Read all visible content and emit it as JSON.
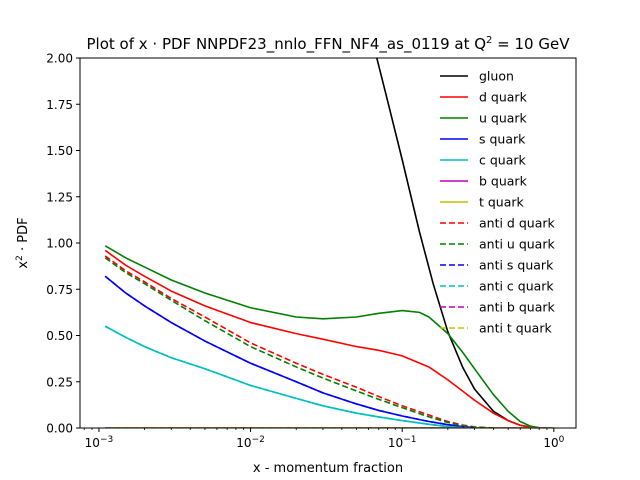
{
  "chart_data": {
    "type": "line",
    "title": {
      "prefix": "Plot of x · PDF NNPDF23_nnlo_FFN_NF4_as_0119 at Q",
      "sup": "2",
      "suffix": " = 10 GeV"
    },
    "xlabel": "x - momentum fraction",
    "ylabel": {
      "base": "x",
      "sup": "2",
      "rest": " · PDF"
    },
    "x_scale": "log",
    "xlim": [
      0.00075,
      1.4
    ],
    "ylim": [
      0,
      2
    ],
    "x_ticks": [
      {
        "value": 0.001,
        "base": "10",
        "exp": "−3"
      },
      {
        "value": 0.01,
        "base": "10",
        "exp": "−2"
      },
      {
        "value": 0.1,
        "base": "10",
        "exp": "−1"
      },
      {
        "value": 1,
        "base": "10",
        "exp": "0"
      }
    ],
    "y_ticks": [
      {
        "value": 0,
        "label": "0.00"
      },
      {
        "value": 0.25,
        "label": "0.25"
      },
      {
        "value": 0.5,
        "label": "0.50"
      },
      {
        "value": 0.75,
        "label": "0.75"
      },
      {
        "value": 1.0,
        "label": "1.00"
      },
      {
        "value": 1.25,
        "label": "1.25"
      },
      {
        "value": 1.5,
        "label": "1.50"
      },
      {
        "value": 1.75,
        "label": "1.75"
      },
      {
        "value": 2.0,
        "label": "2.00"
      }
    ],
    "grid": false,
    "legend_position": "top-right",
    "series": [
      {
        "name": "gluon",
        "color": "#000000",
        "dash": "solid",
        "x": [
          0.068,
          0.08,
          0.1,
          0.13,
          0.16,
          0.2,
          0.25,
          0.3,
          0.4,
          0.5,
          0.6,
          0.7,
          0.8,
          0.9
        ],
        "y": [
          2.0,
          1.77,
          1.45,
          1.06,
          0.78,
          0.52,
          0.33,
          0.21,
          0.09,
          0.04,
          0.015,
          0.005,
          0.001,
          0.0
        ]
      },
      {
        "name": "d quark",
        "color": "#ff0000",
        "dash": "solid",
        "x": [
          0.0011,
          0.0015,
          0.002,
          0.003,
          0.005,
          0.01,
          0.02,
          0.03,
          0.05,
          0.07,
          0.1,
          0.15,
          0.2,
          0.25,
          0.3,
          0.4,
          0.5,
          0.6,
          0.7,
          0.8
        ],
        "y": [
          0.96,
          0.88,
          0.82,
          0.74,
          0.66,
          0.57,
          0.51,
          0.48,
          0.44,
          0.42,
          0.39,
          0.33,
          0.26,
          0.2,
          0.15,
          0.08,
          0.04,
          0.015,
          0.004,
          0.0
        ]
      },
      {
        "name": "u quark",
        "color": "#008000",
        "dash": "solid",
        "x": [
          0.0011,
          0.0015,
          0.002,
          0.003,
          0.005,
          0.01,
          0.02,
          0.03,
          0.05,
          0.07,
          0.1,
          0.13,
          0.15,
          0.2,
          0.25,
          0.3,
          0.4,
          0.5,
          0.6,
          0.7,
          0.8,
          0.85
        ],
        "y": [
          0.985,
          0.92,
          0.87,
          0.8,
          0.73,
          0.65,
          0.6,
          0.59,
          0.6,
          0.62,
          0.635,
          0.625,
          0.6,
          0.51,
          0.41,
          0.32,
          0.18,
          0.09,
          0.035,
          0.01,
          0.002,
          0.0
        ]
      },
      {
        "name": "s quark",
        "color": "#0000ff",
        "dash": "solid",
        "x": [
          0.0011,
          0.0015,
          0.002,
          0.003,
          0.005,
          0.01,
          0.02,
          0.03,
          0.05,
          0.07,
          0.1,
          0.15,
          0.2,
          0.25,
          0.3
        ],
        "y": [
          0.82,
          0.73,
          0.66,
          0.57,
          0.47,
          0.35,
          0.25,
          0.19,
          0.13,
          0.095,
          0.065,
          0.035,
          0.018,
          0.007,
          0.002
        ]
      },
      {
        "name": "c quark",
        "color": "#00bfbf",
        "dash": "solid",
        "x": [
          0.0011,
          0.0015,
          0.002,
          0.003,
          0.005,
          0.01,
          0.02,
          0.03,
          0.05,
          0.07,
          0.1,
          0.15,
          0.2,
          0.25
        ],
        "y": [
          0.55,
          0.49,
          0.44,
          0.38,
          0.32,
          0.23,
          0.16,
          0.12,
          0.08,
          0.06,
          0.04,
          0.02,
          0.008,
          0.002
        ]
      },
      {
        "name": "b quark",
        "color": "#bf00bf",
        "dash": "solid",
        "x": [
          0.0011,
          1.0
        ],
        "y": [
          0.0,
          0.0
        ]
      },
      {
        "name": "t quark",
        "color": "#bfbf00",
        "dash": "solid",
        "x": [
          0.0011,
          1.0
        ],
        "y": [
          0.0,
          0.0
        ]
      },
      {
        "name": "anti d quark",
        "color": "#ff0000",
        "dash": "dashed",
        "x": [
          0.0011,
          0.0015,
          0.002,
          0.003,
          0.005,
          0.01,
          0.02,
          0.03,
          0.05,
          0.07,
          0.1,
          0.15,
          0.2,
          0.25,
          0.3,
          0.4
        ],
        "y": [
          0.93,
          0.85,
          0.79,
          0.7,
          0.6,
          0.46,
          0.35,
          0.29,
          0.22,
          0.17,
          0.12,
          0.07,
          0.035,
          0.016,
          0.006,
          0.0
        ]
      },
      {
        "name": "anti u quark",
        "color": "#008000",
        "dash": "dashed",
        "x": [
          0.0011,
          0.0015,
          0.002,
          0.003,
          0.005,
          0.01,
          0.02,
          0.03,
          0.05,
          0.07,
          0.1,
          0.15,
          0.2,
          0.25,
          0.3,
          0.4
        ],
        "y": [
          0.92,
          0.84,
          0.78,
          0.69,
          0.58,
          0.44,
          0.33,
          0.27,
          0.2,
          0.155,
          0.11,
          0.06,
          0.03,
          0.013,
          0.005,
          0.0
        ]
      },
      {
        "name": "anti s quark",
        "color": "#0000ff",
        "dash": "dashed",
        "x": [
          0.0011,
          0.0015,
          0.002,
          0.003,
          0.005,
          0.01,
          0.02,
          0.03,
          0.05,
          0.07,
          0.1,
          0.15,
          0.2,
          0.25,
          0.3
        ],
        "y": [
          0.82,
          0.73,
          0.66,
          0.57,
          0.47,
          0.35,
          0.25,
          0.19,
          0.13,
          0.095,
          0.065,
          0.035,
          0.018,
          0.007,
          0.002
        ]
      },
      {
        "name": "anti c quark",
        "color": "#00bfbf",
        "dash": "dashed",
        "x": [
          0.0011,
          0.0015,
          0.002,
          0.003,
          0.005,
          0.01,
          0.02,
          0.03,
          0.05,
          0.07,
          0.1,
          0.15,
          0.2,
          0.25
        ],
        "y": [
          0.55,
          0.49,
          0.44,
          0.38,
          0.32,
          0.23,
          0.16,
          0.12,
          0.08,
          0.06,
          0.04,
          0.02,
          0.008,
          0.002
        ]
      },
      {
        "name": "anti b quark",
        "color": "#bf00bf",
        "dash": "dashed",
        "x": [
          0.0011,
          1.0
        ],
        "y": [
          0.0,
          0.0
        ]
      },
      {
        "name": "anti t quark",
        "color": "#bfbf00",
        "dash": "dashed",
        "x": [
          0.0011,
          1.0
        ],
        "y": [
          0.0,
          0.0
        ]
      }
    ]
  }
}
